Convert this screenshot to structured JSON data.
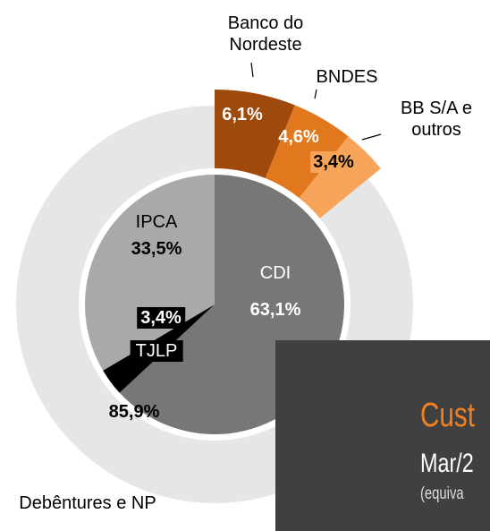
{
  "chart_data": [
    {
      "type": "donut",
      "categories": [
        "Banco do Nordeste",
        "BNDES",
        "BB S/A e outros",
        "Debêntures e NP"
      ],
      "values": [
        6.1,
        4.6,
        3.4,
        85.9
      ],
      "value_labels": [
        "6,1%",
        "4,6%",
        "3,4%",
        "85,9%"
      ],
      "colors": [
        "#9e4a0c",
        "#e2781e",
        "#f5a45a",
        "#e6e6e6"
      ]
    },
    {
      "type": "pie",
      "categories": [
        "CDI",
        "TJLP",
        "IPCA"
      ],
      "values": [
        63.1,
        3.4,
        33.5
      ],
      "value_labels": [
        "63,1%",
        "3,4%",
        "33,5%"
      ],
      "colors": [
        "#777777",
        "#000000",
        "#a9a9a9"
      ]
    }
  ],
  "panel": {
    "title": "Cust",
    "subtitle": "Mar/2",
    "note": "(equiva"
  }
}
